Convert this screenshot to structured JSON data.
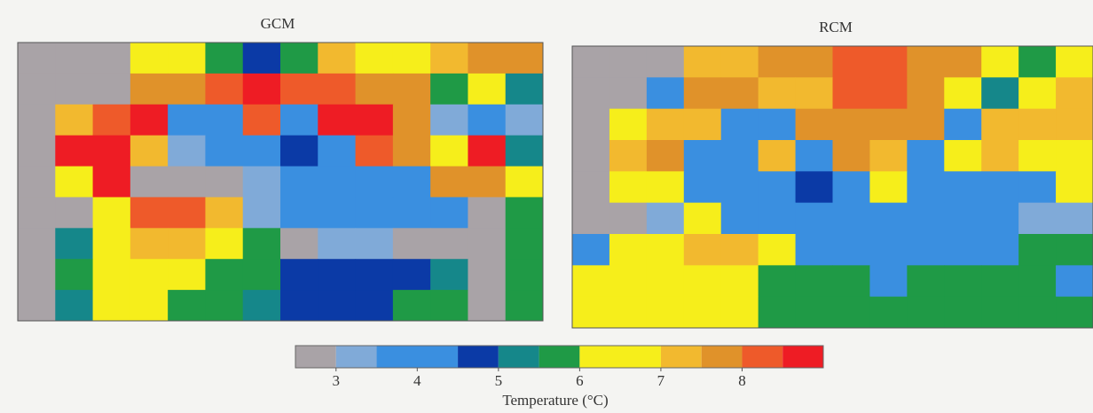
{
  "panels": [
    {
      "title": "GCM",
      "cells": [
        [
          2.75,
          2.75,
          2.75,
          6.5,
          6.5,
          5.75,
          4.75,
          5.75,
          7.25,
          6.5,
          6.5,
          7.25,
          7.75,
          7.75
        ],
        [
          2.75,
          2.75,
          2.75,
          7.75,
          7.75,
          8.25,
          8.75,
          8.25,
          8.25,
          7.75,
          7.75,
          5.75,
          6.5,
          5.25
        ],
        [
          2.75,
          7.25,
          8.25,
          8.75,
          4,
          4,
          8.25,
          4,
          8.75,
          8.75,
          7.75,
          3.25,
          4,
          3.25
        ],
        [
          2.75,
          8.75,
          8.75,
          7.25,
          3.25,
          4,
          4,
          4.75,
          4,
          8.25,
          7.75,
          6.5,
          8.75,
          5.25
        ],
        [
          2.75,
          6.5,
          8.75,
          2.75,
          2.75,
          2.75,
          3.25,
          4,
          4,
          4,
          4,
          7.75,
          7.75,
          6.5
        ],
        [
          2.75,
          2.75,
          6.5,
          8.25,
          8.25,
          7.25,
          3.25,
          4,
          4,
          4,
          4,
          4,
          2.75,
          5.75
        ],
        [
          2.75,
          5.25,
          6.5,
          7.25,
          7.25,
          6.5,
          5.75,
          2.75,
          3.25,
          3.25,
          2.75,
          2.75,
          2.75,
          5.75
        ],
        [
          2.75,
          5.75,
          6.5,
          6.5,
          6.5,
          5.75,
          5.75,
          4.75,
          4.75,
          4.75,
          4.75,
          5.25,
          2.75,
          5.75
        ],
        [
          2.75,
          5.25,
          6.5,
          6.5,
          5.75,
          5.75,
          5.25,
          4.75,
          4.75,
          4.75,
          5.75,
          5.75,
          2.75,
          5.75
        ]
      ]
    },
    {
      "title": "RCM",
      "cells": [
        [
          2.75,
          2.75,
          2.75,
          7.25,
          7.25,
          7.75,
          7.75,
          8.25,
          8.25,
          7.75,
          7.75,
          6.5,
          5.75,
          6.5
        ],
        [
          2.75,
          2.75,
          4,
          7.75,
          7.75,
          7.25,
          7.25,
          8.25,
          8.25,
          7.75,
          6.5,
          5.25,
          6.5,
          7.25
        ],
        [
          2.75,
          6.5,
          7.25,
          7.25,
          4,
          4,
          7.75,
          7.75,
          7.75,
          7.75,
          4,
          7.25,
          7.25,
          7.25
        ],
        [
          2.75,
          7.25,
          7.75,
          4,
          4,
          7.25,
          4,
          7.75,
          7.25,
          4,
          6.5,
          7.25,
          6.5,
          6.5
        ],
        [
          2.75,
          6.5,
          6.5,
          4,
          4,
          4,
          4.75,
          4,
          6.5,
          4,
          4,
          4,
          4,
          6.5
        ],
        [
          2.75,
          2.75,
          3.25,
          6.5,
          4,
          4,
          4,
          4,
          4,
          4,
          4,
          4,
          3.25,
          3.25
        ],
        [
          4,
          6.5,
          6.5,
          7.25,
          7.25,
          6.5,
          4,
          4,
          4,
          4,
          4,
          4,
          5.75,
          5.75
        ],
        [
          6.5,
          6.5,
          6.5,
          6.5,
          6.5,
          5.75,
          5.75,
          5.75,
          4,
          5.75,
          5.75,
          5.75,
          5.75,
          4
        ],
        [
          6.5,
          6.5,
          6.5,
          6.5,
          6.5,
          5.75,
          5.75,
          5.75,
          5.75,
          5.75,
          5.75,
          5.75,
          5.75,
          5.75
        ]
      ]
    }
  ],
  "colorbar": {
    "bounds": [
      2.5,
      3,
      3.5,
      4.5,
      5,
      5.5,
      6,
      7,
      7.5,
      8,
      8.5,
      9
    ],
    "colors": [
      "#a9a3a7",
      "#80aad8",
      "#3a8fe0",
      "#0b3aa6",
      "#15878a",
      "#1f9a46",
      "#f6ee1b",
      "#f2b92f",
      "#e0922a",
      "#ee5a2a",
      "#ee1c24"
    ],
    "ticks": [
      3,
      4,
      5,
      6,
      7,
      8
    ],
    "label": "Temperature (°C)"
  }
}
